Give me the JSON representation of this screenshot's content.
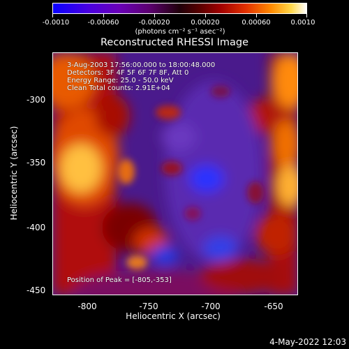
{
  "colorbar": {
    "tick_labels": [
      "-0.0010",
      "-0.00060",
      "-0.00020",
      "0.00020",
      "0.00060",
      "0.0010"
    ],
    "units": "(photons cm⁻² s⁻¹ asec⁻²)"
  },
  "title": "Reconstructed RHESSI Image",
  "info": {
    "time_range": "3-Aug-2003 17:56:00.000 to 18:00:48.000",
    "detectors": "Detectors: 3F 4F 5F 6F 7F 8F, Att 0",
    "energy_range": "Energy Range: 25.0 - 50.0 keV",
    "method": "Clean    Total counts: 2.91E+04"
  },
  "peak_text": "Position of Peak = [-805,-353]",
  "axes": {
    "xlabel": "Heliocentric X (arcsec)",
    "ylabel": "Heliocentric Y (arcsec)",
    "x_ticks": [
      "-800",
      "-750",
      "-700",
      "-650"
    ],
    "y_ticks": [
      "-300",
      "-350",
      "-400",
      "-450"
    ]
  },
  "timestamp": "4-May-2022 12:03"
}
